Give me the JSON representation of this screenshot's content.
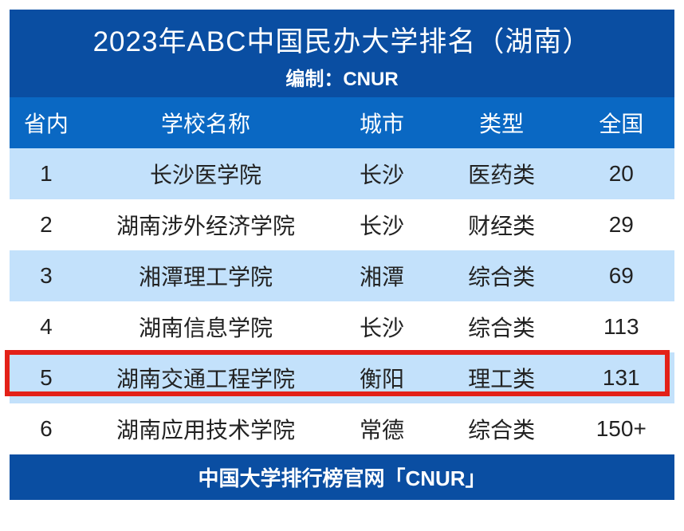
{
  "colors": {
    "header_bg": "#0a4ea2",
    "header_text": "#ffffff",
    "col_header_bg": "#0a68c3",
    "col_header_text": "#ffffff",
    "row_odd_bg": "#c3e1fb",
    "row_even_bg": "#ffffff",
    "row_text": "#222222",
    "footer_bg": "#0a4ea2",
    "footer_text": "#ffffff",
    "highlight_border": "#e32118"
  },
  "header": {
    "title": "2023年ABC中国民办大学排名（湖南）",
    "subtitle": "编制：CNUR"
  },
  "table": {
    "columns": [
      "省内",
      "学校名称",
      "城市",
      "类型",
      "全国"
    ],
    "rows": [
      {
        "rank": "1",
        "name": "长沙医学院",
        "city": "长沙",
        "type": "医药类",
        "national": "20",
        "highlight": false
      },
      {
        "rank": "2",
        "name": "湖南涉外经济学院",
        "city": "长沙",
        "type": "财经类",
        "national": "29",
        "highlight": false
      },
      {
        "rank": "3",
        "name": "湘潭理工学院",
        "city": "湘潭",
        "type": "综合类",
        "national": "69",
        "highlight": false
      },
      {
        "rank": "4",
        "name": "湖南信息学院",
        "city": "长沙",
        "type": "综合类",
        "national": "113",
        "highlight": false
      },
      {
        "rank": "5",
        "name": "湖南交通工程学院",
        "city": "衡阳",
        "type": "理工类",
        "national": "131",
        "highlight": true
      },
      {
        "rank": "6",
        "name": "湖南应用技术学院",
        "city": "常德",
        "type": "综合类",
        "national": "150+",
        "highlight": false
      }
    ]
  },
  "footer": {
    "text": "中国大学排行榜官网「CNUR」"
  },
  "typography": {
    "title_fontsize": 35,
    "subtitle_fontsize": 24,
    "header_fontsize": 28,
    "cell_fontsize": 28,
    "footer_fontsize": 26
  }
}
